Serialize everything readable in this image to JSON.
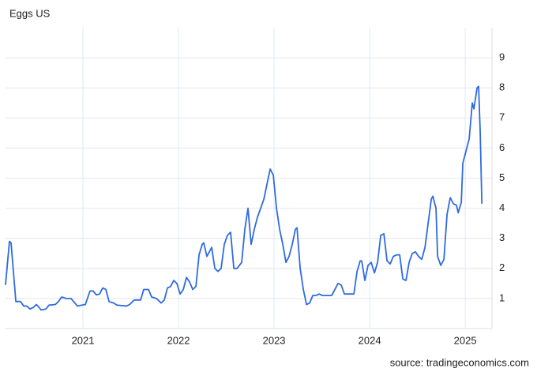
{
  "chart_data": {
    "type": "line",
    "title": "Eggs US",
    "source": "source: tradingeconomics.com",
    "x": [
      2020.19,
      2020.231,
      2020.248,
      2020.298,
      2020.347,
      2020.38,
      2020.413,
      2020.446,
      2020.479,
      2020.512,
      2020.529,
      2020.562,
      2020.612,
      2020.645,
      2020.711,
      2020.744,
      2020.777,
      2020.826,
      2020.876,
      2020.942,
      2020.992,
      2021.025,
      2021.074,
      2021.107,
      2021.14,
      2021.174,
      2021.207,
      2021.24,
      2021.273,
      2021.322,
      2021.355,
      2021.455,
      2021.488,
      2021.537,
      2021.603,
      2021.636,
      2021.686,
      2021.719,
      2021.769,
      2021.818,
      2021.851,
      2021.884,
      2021.917,
      2021.95,
      2021.983,
      2022.017,
      2022.05,
      2022.083,
      2022.116,
      2022.149,
      2022.182,
      2022.215,
      2022.248,
      2022.264,
      2022.297,
      2022.331,
      2022.347,
      2022.38,
      2022.413,
      2022.446,
      2022.479,
      2022.512,
      2022.545,
      2022.579,
      2022.612,
      2022.661,
      2022.694,
      2022.727,
      2022.76,
      2022.793,
      2022.826,
      2022.86,
      2022.893,
      2022.926,
      2022.959,
      2022.992,
      2023.025,
      2023.058,
      2023.091,
      2023.124,
      2023.157,
      2023.19,
      2023.223,
      2023.24,
      2023.273,
      2023.306,
      2023.339,
      2023.372,
      2023.405,
      2023.438,
      2023.471,
      2023.504,
      2023.603,
      2023.636,
      2023.669,
      2023.702,
      2023.736,
      2023.835,
      2023.868,
      2023.901,
      2023.917,
      2023.95,
      2023.983,
      2024.016,
      2024.05,
      2024.083,
      2024.116,
      2024.149,
      2024.182,
      2024.215,
      2024.248,
      2024.281,
      2024.314,
      2024.347,
      2024.38,
      2024.413,
      2024.446,
      2024.479,
      2024.512,
      2024.545,
      2024.579,
      2024.612,
      2024.645,
      2024.661,
      2024.694,
      2024.711,
      2024.744,
      2024.777,
      2024.81,
      2024.843,
      2024.876,
      2024.909,
      2024.926,
      2024.959,
      2024.975,
      2025.008,
      2025.041,
      2025.074,
      2025.091,
      2025.124,
      2025.14,
      2025.157,
      2025.174
    ],
    "series": [
      {
        "name": "Eggs US",
        "color": "#2f6be0",
        "values": [
          1.45,
          2.9,
          2.85,
          0.9,
          0.9,
          0.75,
          0.75,
          0.65,
          0.7,
          0.8,
          0.75,
          0.62,
          0.65,
          0.78,
          0.8,
          0.9,
          1.05,
          1.0,
          1.0,
          0.75,
          0.78,
          0.8,
          1.25,
          1.25,
          1.12,
          1.15,
          1.35,
          1.3,
          0.9,
          0.85,
          0.78,
          0.75,
          0.8,
          0.95,
          0.95,
          1.3,
          1.3,
          1.05,
          1.0,
          0.85,
          0.95,
          1.35,
          1.4,
          1.6,
          1.5,
          1.15,
          1.3,
          1.7,
          1.55,
          1.3,
          1.4,
          2.45,
          2.8,
          2.85,
          2.4,
          2.6,
          2.7,
          2.0,
          1.9,
          2.0,
          2.8,
          3.1,
          3.2,
          2.0,
          2.0,
          2.2,
          3.3,
          4.0,
          2.8,
          3.3,
          3.7,
          4.0,
          4.3,
          4.8,
          5.3,
          5.1,
          4.0,
          3.3,
          2.8,
          2.2,
          2.4,
          2.8,
          3.3,
          3.35,
          2.0,
          1.3,
          0.8,
          0.85,
          1.1,
          1.1,
          1.15,
          1.1,
          1.1,
          1.3,
          1.5,
          1.45,
          1.15,
          1.15,
          1.9,
          2.25,
          2.25,
          1.6,
          2.1,
          2.2,
          1.85,
          2.2,
          3.1,
          3.15,
          2.25,
          2.15,
          2.4,
          2.45,
          2.45,
          1.65,
          1.6,
          2.2,
          2.5,
          2.55,
          2.4,
          2.3,
          2.7,
          3.5,
          4.3,
          4.4,
          4.0,
          2.4,
          2.1,
          2.3,
          3.8,
          4.35,
          4.15,
          4.1,
          3.85,
          4.2,
          5.5,
          5.9,
          6.3,
          7.5,
          7.3,
          8.0,
          8.05,
          6.5,
          4.15
        ]
      }
    ],
    "xlim": [
      2020.19,
      2025.28
    ],
    "xticks": [
      2021,
      2022,
      2023,
      2024,
      2025
    ],
    "ylim": [
      0,
      10
    ],
    "yticks": [
      1,
      2,
      3,
      4,
      5,
      6,
      7,
      8,
      9
    ],
    "grid": true
  }
}
